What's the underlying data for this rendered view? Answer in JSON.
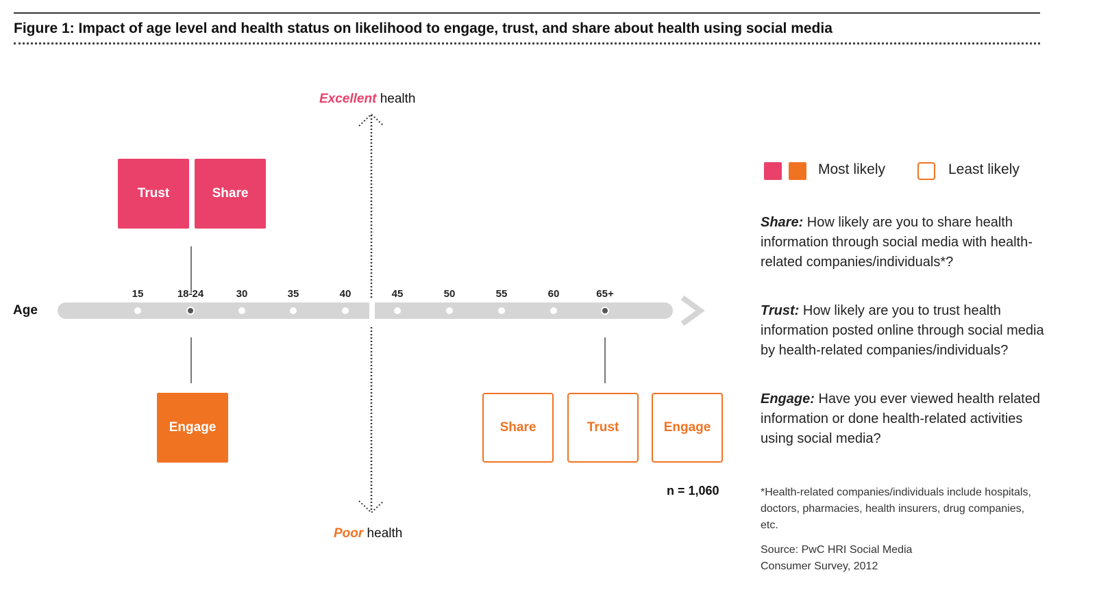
{
  "figure": {
    "title": "Figure 1:  Impact of age level and health status on likelihood to engage, trust, and share about health using social media"
  },
  "axis": {
    "top_emphasis": "Excellent",
    "top_rest": " health",
    "bottom_emphasis": "Poor",
    "bottom_rest": " health",
    "age_label": "Age",
    "ticks": [
      "15",
      "18-24",
      "30",
      "35",
      "40",
      "45",
      "50",
      "55",
      "60",
      "65+"
    ],
    "marked_ticks": [
      "18-24",
      "65+"
    ]
  },
  "boxes": {
    "upper_left": [
      {
        "label": "Trust",
        "style": "most-likely-pink"
      },
      {
        "label": "Share",
        "style": "most-likely-pink"
      }
    ],
    "lower_left": [
      {
        "label": "Engage",
        "style": "most-likely-orange"
      }
    ],
    "lower_right": [
      {
        "label": "Share",
        "style": "least-likely"
      },
      {
        "label": "Trust",
        "style": "least-likely"
      },
      {
        "label": "Engage",
        "style": "least-likely"
      }
    ]
  },
  "legend": {
    "most_likely": "Most likely",
    "least_likely": "Least likely"
  },
  "definitions": [
    {
      "term": "Share:",
      "text": " How likely are you to share health information through social media with health-related companies/individuals*?"
    },
    {
      "term": "Trust:",
      "text": " How likely are you to trust health information posted online through social media by health-related companies/individuals?"
    },
    {
      "term": "Engage:",
      "text": " Have you ever viewed health related information or done health-related activities using social media?"
    }
  ],
  "sample_size": "n = 1,060",
  "footnote": "*Health-related companies/individuals include hospitals, doctors, pharmacies, health insurers, drug companies, etc.",
  "source": "Source: PwC HRI Social Media Consumer Survey, 2012",
  "colors": {
    "pink": "#e9416a",
    "orange": "#f07322",
    "track": "#d5d5d5"
  }
}
